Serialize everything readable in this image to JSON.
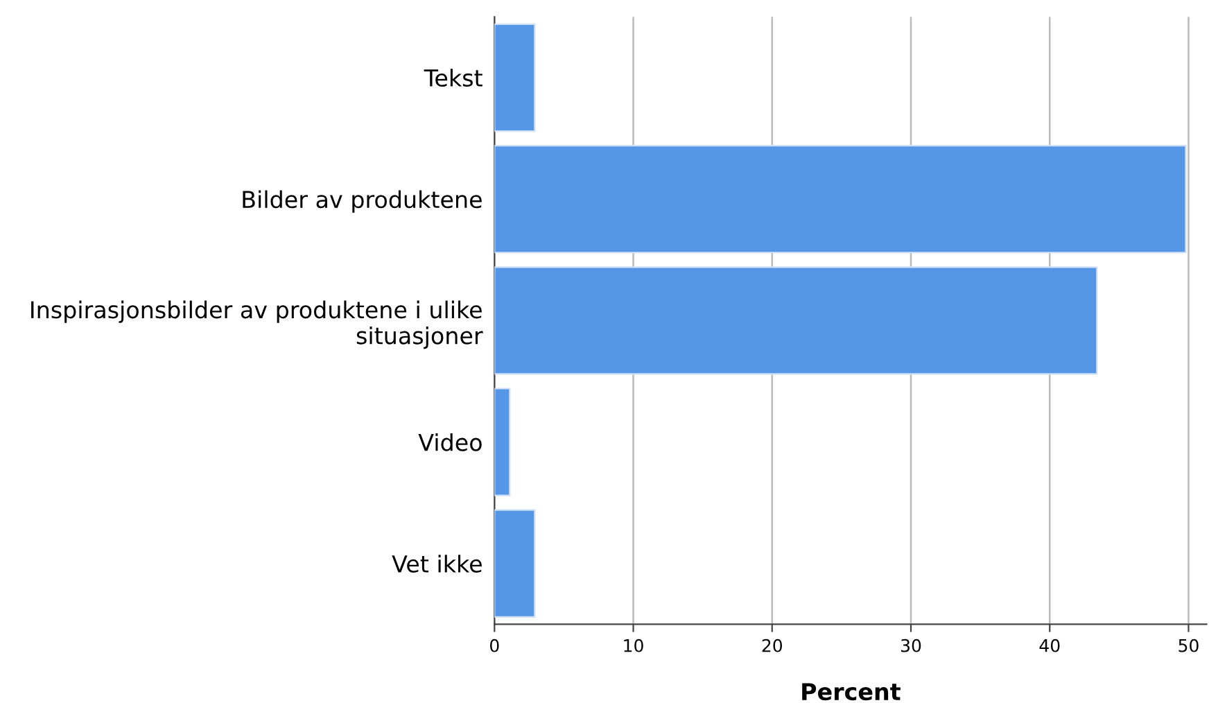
{
  "chart_data": {
    "type": "bar",
    "orientation": "horizontal",
    "xlabel": "Percent",
    "categories": [
      "Tekst",
      "Bilder av produktene",
      "Inspirasjonsbilder av produktene i ulike\nsituasjoner",
      "Video",
      "Vet ikke"
    ],
    "values": [
      2.9,
      49.8,
      43.4,
      1.1,
      2.9
    ],
    "color": "#5596e6",
    "xlim": [
      0,
      51.3
    ],
    "xticks": [
      0,
      10,
      20,
      30,
      40,
      50
    ],
    "grid": "x"
  }
}
